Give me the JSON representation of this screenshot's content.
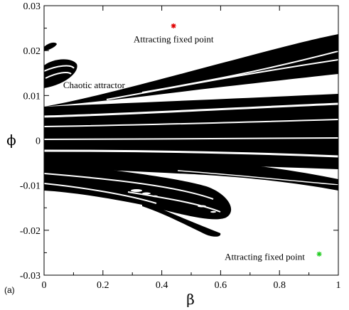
{
  "chart_data": {
    "type": "scatter",
    "panel_label": "(a)",
    "xlabel": "β",
    "ylabel": "ϕ",
    "xlim": [
      0,
      1
    ],
    "ylim": [
      -0.03,
      0.03
    ],
    "x_ticks": [
      0,
      0.2,
      0.4,
      0.6,
      0.8,
      1
    ],
    "x_tick_labels": [
      "0",
      "0.2",
      "0.4",
      "0.6",
      "0.8",
      "1"
    ],
    "y_ticks": [
      -0.03,
      -0.02,
      -0.01,
      0,
      0.01,
      0.02,
      0.03
    ],
    "y_tick_labels": [
      "-0.03",
      "-0.02",
      "-0.01",
      "0",
      "0.01",
      "0.02",
      "0.03"
    ],
    "grid": false,
    "series": [
      {
        "marker": "asterisk",
        "color": "#e00000",
        "points": [
          {
            "x": 0.44,
            "y": 0.0255
          }
        ]
      },
      {
        "marker": "asterisk",
        "color": "#22cc22",
        "points": [
          {
            "x": 0.935,
            "y": -0.0253
          }
        ]
      }
    ],
    "annotations": [
      {
        "text": "Attracting fixed point",
        "x": 0.44,
        "y": 0.0225
      },
      {
        "text": "Chaotic attractor",
        "x": 0.17,
        "y": 0.0123
      },
      {
        "text": "Attracting fixed point",
        "x": 0.75,
        "y": -0.026
      }
    ]
  }
}
